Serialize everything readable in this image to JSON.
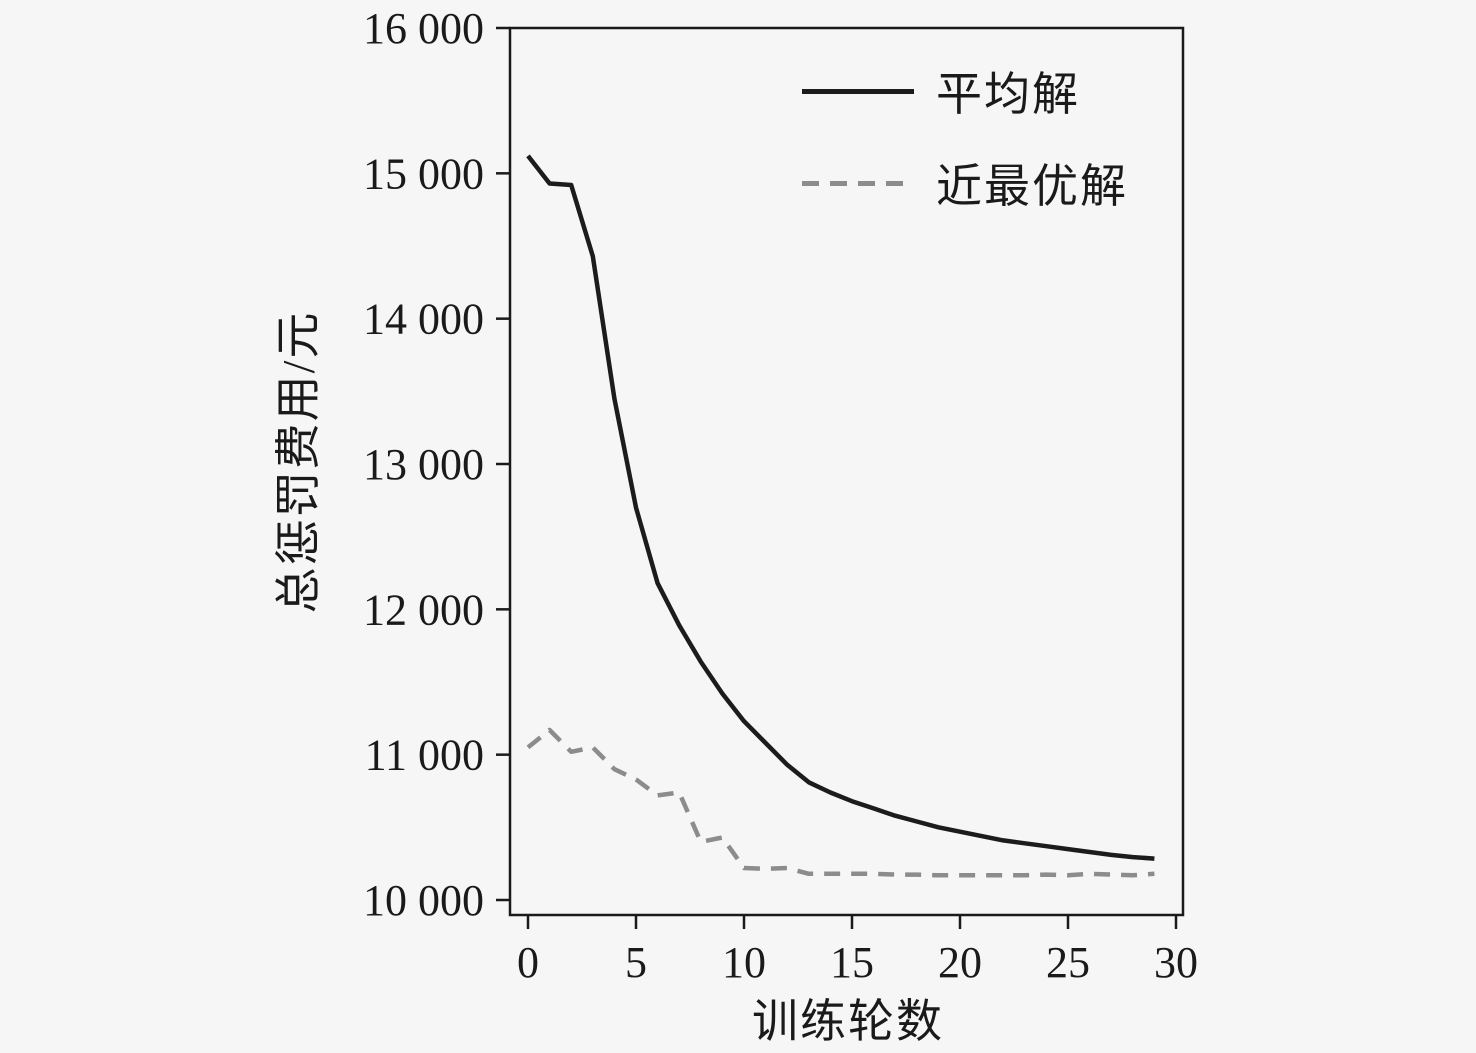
{
  "figure": {
    "xlabel": "训练轮数",
    "ylabel": "总惩罚费用/元"
  },
  "legend": {
    "items": [
      {
        "label": "平均解",
        "style": "solid",
        "color": "#1c1c1c"
      },
      {
        "label": "近最优解",
        "style": "dashed",
        "color": "#8c8c8c"
      }
    ]
  },
  "colors": {
    "background": "#f6f6f6",
    "axis": "#1a1a1a",
    "series_average": "#1c1c1c",
    "series_near_optimal": "#8c8c8c"
  },
  "chart_data": {
    "type": "line",
    "title": "",
    "xlabel": "训练轮数",
    "ylabel": "总惩罚费用/元",
    "xlim": [
      0,
      30
    ],
    "ylim": [
      10000,
      16000
    ],
    "xticks": [
      0,
      5,
      10,
      15,
      20,
      25,
      30
    ],
    "yticks": [
      10000,
      11000,
      12000,
      13000,
      14000,
      15000,
      16000
    ],
    "ytick_labels": [
      "10 000",
      "11 000",
      "12 000",
      "13 000",
      "14 000",
      "15 000",
      "16 000"
    ],
    "grid": false,
    "legend_position": "upper-right-inside",
    "x": [
      0,
      1,
      2,
      3,
      4,
      5,
      6,
      7,
      8,
      9,
      10,
      11,
      12,
      13,
      14,
      15,
      16,
      17,
      18,
      19,
      20,
      21,
      22,
      23,
      24,
      25,
      26,
      27,
      28,
      29
    ],
    "series": [
      {
        "name": "平均解",
        "line_style": "solid",
        "color": "#1c1c1c",
        "values": [
          15120,
          14930,
          14920,
          14430,
          13450,
          12700,
          12180,
          11890,
          11640,
          11420,
          11230,
          11080,
          10930,
          10810,
          10740,
          10680,
          10630,
          10580,
          10540,
          10500,
          10470,
          10440,
          10410,
          10390,
          10370,
          10350,
          10330,
          10310,
          10295,
          10285
        ]
      },
      {
        "name": "近最优解",
        "line_style": "dashed",
        "color": "#8c8c8c",
        "values": [
          11050,
          11170,
          11020,
          11050,
          10900,
          10830,
          10720,
          10740,
          10400,
          10430,
          10220,
          10215,
          10220,
          10180,
          10180,
          10180,
          10180,
          10175,
          10175,
          10170,
          10170,
          10170,
          10170,
          10170,
          10175,
          10170,
          10180,
          10175,
          10170,
          10180
        ]
      }
    ]
  }
}
